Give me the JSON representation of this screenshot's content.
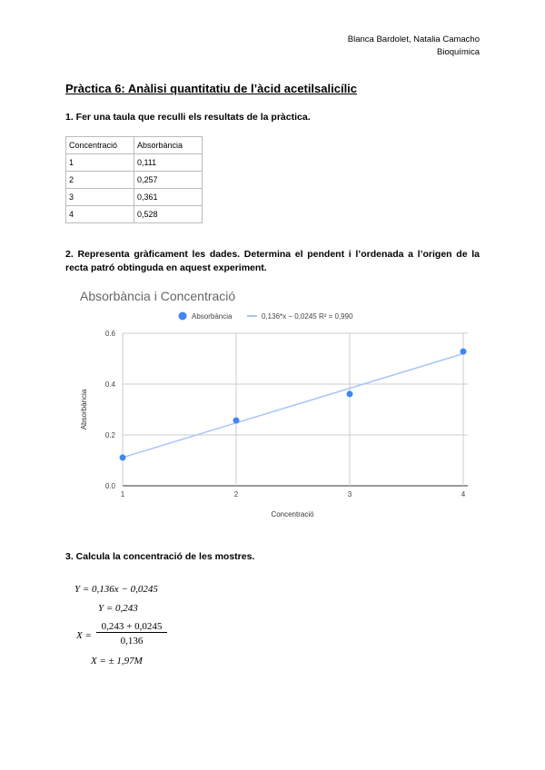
{
  "header": {
    "authors": "Blanca Bardolet, Natalia Camacho",
    "subject": "Bioquímica"
  },
  "title": "Pràctica 6: Anàlisi quantitatiu de l’àcid acetilsalicílic",
  "q1": "1. Fer una taula que reculli els resultats de la pràctica.",
  "table": {
    "headers": [
      "Concentració",
      "Absorbància"
    ],
    "rows": [
      [
        "1",
        "0,111"
      ],
      [
        "2",
        "0,257"
      ],
      [
        "3",
        "0,361"
      ],
      [
        "4",
        "0,528"
      ]
    ]
  },
  "q2": "2. Representa gràficament les dades. Determina el pendent i l’ordenada a l’origen de la recta patró obtinguda en aquest experiment.",
  "chart_data": {
    "type": "scatter",
    "title": "Absorbància i Concentració",
    "xlabel": "Concentració",
    "ylabel": "Absorbància",
    "x": [
      1,
      2,
      3,
      4
    ],
    "y": [
      0.111,
      0.257,
      0.361,
      0.528
    ],
    "xlim": [
      1,
      4
    ],
    "ylim": [
      0,
      0.6
    ],
    "xticks": [
      "1",
      "2",
      "3",
      "4"
    ],
    "yticks": [
      "0.0",
      "0.2",
      "0.4",
      "0.6"
    ],
    "legend": {
      "series": "Absorbància",
      "trendline": "0,136*x − 0,0245 R² = 0,990",
      "placement": "top"
    },
    "trendline": {
      "slope": 0.136,
      "intercept": -0.0245
    },
    "grid": true,
    "colors": {
      "points": "#4285f4",
      "trendline": "#a8c5f7"
    }
  },
  "q3": "3. Calcula la concentració de les mostres.",
  "equations": {
    "e1": "Y = 0,136x − 0,0245",
    "e2": "Y = 0,243",
    "e3_lhs": "X =",
    "e3_num": "0,243 + 0,0245",
    "e3_den": "0,136",
    "e4": "X = ± 1,97M"
  }
}
